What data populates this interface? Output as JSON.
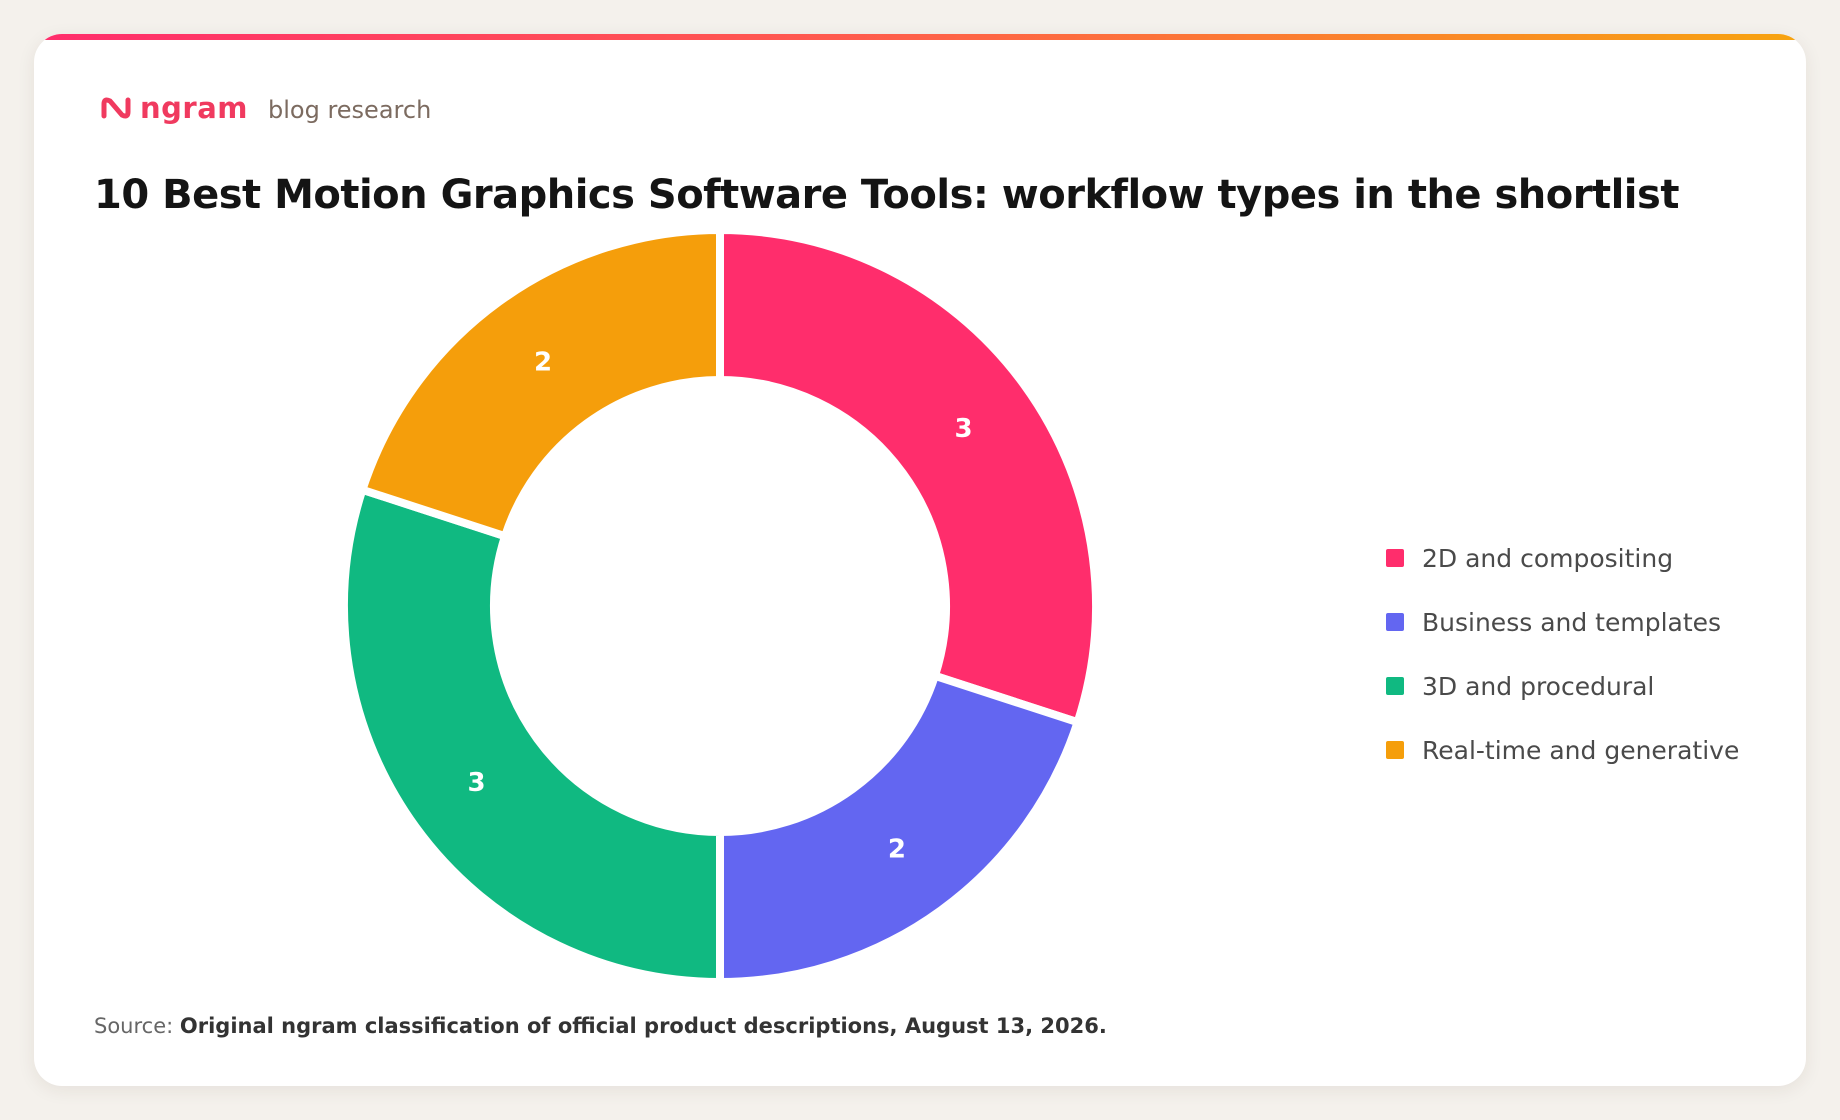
{
  "brand": {
    "name": "ngram",
    "subtitle": "blog research",
    "logo_icon": "ngram-logo-icon",
    "accent": "#f03a5f"
  },
  "title": "10 Best Motion Graphics Software Tools: workflow types in the shortlist",
  "chart_data": {
    "type": "pie",
    "donut": true,
    "categories": [
      "2D and compositing",
      "Business and templates",
      "3D and procedural",
      "Real-time and generative"
    ],
    "values": [
      3,
      2,
      3,
      2
    ],
    "colors": [
      "#ff2d6c",
      "#6366f1",
      "#10b981",
      "#f59e0b"
    ],
    "data_labels": [
      "3",
      "2",
      "3",
      "2"
    ],
    "legend_position": "right"
  },
  "source": {
    "prefix": "Source:",
    "text": "Original ngram classification of official product descriptions, August 13, 2026."
  }
}
